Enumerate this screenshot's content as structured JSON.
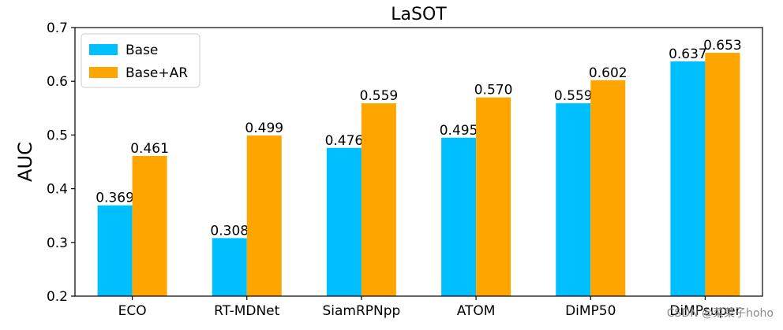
{
  "chart_data": {
    "type": "bar",
    "title": "LaSOT",
    "xlabel": "",
    "ylabel": "AUC",
    "ylim": [
      0.2,
      0.7
    ],
    "yticks": [
      "0.2",
      "0.3",
      "0.4",
      "0.5",
      "0.6",
      "0.7"
    ],
    "categories": [
      "ECO",
      "RT-MDNet",
      "SiamRPNpp",
      "ATOM",
      "DiMP50",
      "DiMPsuper"
    ],
    "series": [
      {
        "name": "Base",
        "values": [
          0.369,
          0.308,
          0.476,
          0.495,
          0.559,
          0.637
        ],
        "labels": [
          "0.369",
          "0.308",
          "0.476",
          "0.495",
          "0.559",
          "0.637"
        ],
        "color": "#00BFFF"
      },
      {
        "name": "Base+AR",
        "values": [
          0.461,
          0.499,
          0.559,
          0.57,
          0.602,
          0.653
        ],
        "labels": [
          "0.461",
          "0.499",
          "0.559",
          "0.570",
          "0.602",
          "0.653"
        ],
        "color": "#FFA500"
      }
    ],
    "legend": "top-left",
    "grid": false
  },
  "watermark": "CSDN @菜菜子hoho"
}
